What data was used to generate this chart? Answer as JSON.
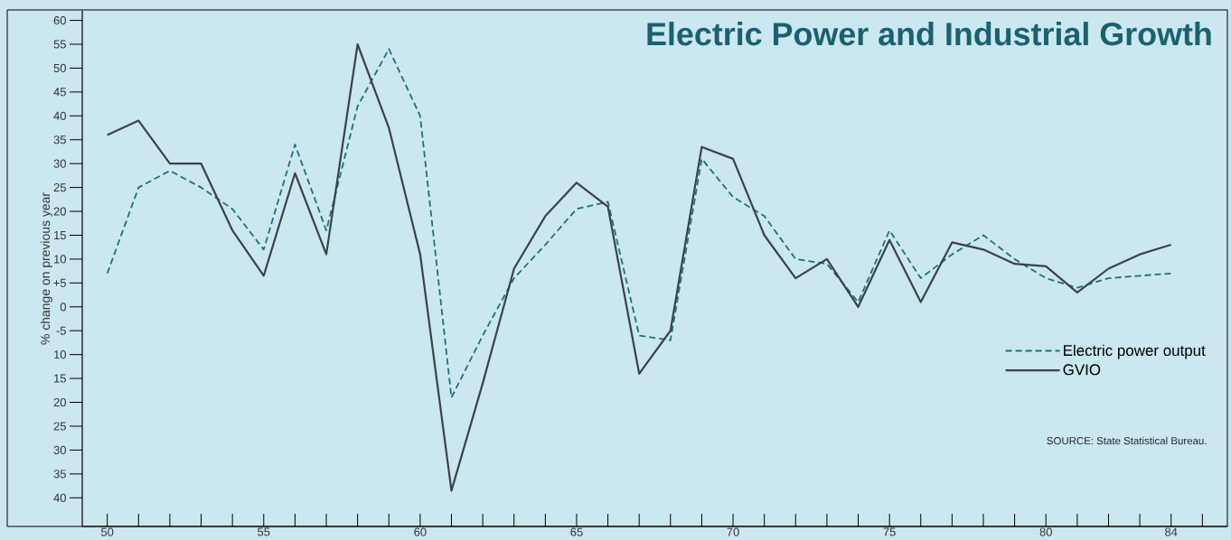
{
  "chart_data": {
    "type": "line",
    "title": "Electric Power and Industrial Growth",
    "ylabel": "% change on previous year",
    "annotations": [
      "SOURCE: State Statistical Bureau."
    ],
    "x": [
      50,
      51,
      52,
      53,
      54,
      55,
      56,
      57,
      58,
      59,
      60,
      61,
      62,
      63,
      64,
      65,
      66,
      67,
      68,
      69,
      70,
      71,
      72,
      73,
      74,
      75,
      76,
      77,
      78,
      79,
      80,
      81,
      82,
      83,
      84
    ],
    "series": [
      {
        "name": "Electric power output",
        "color": "#1f6f7a",
        "line_style": "dashed",
        "values": [
          7,
          25,
          28.5,
          25,
          20.5,
          12,
          34,
          16,
          42,
          54,
          40,
          -19,
          -6,
          6,
          13,
          20.5,
          22,
          -6,
          -7,
          31,
          23,
          19,
          10,
          9,
          1,
          16,
          6,
          11,
          15,
          10,
          6,
          4,
          6,
          6.5,
          7
        ]
      },
      {
        "name": "GVIO",
        "color": "#3a4348",
        "line_style": "solid",
        "values": [
          36,
          39,
          30,
          30,
          16,
          6.5,
          28,
          11,
          55,
          37.5,
          11,
          -38.5,
          -16,
          8,
          19,
          26,
          21,
          -14,
          -5,
          33.5,
          31,
          15,
          6,
          10,
          0,
          14,
          1,
          13.5,
          12,
          9,
          8.5,
          3,
          8,
          11,
          13
        ]
      }
    ],
    "xlim": [
      49.2,
      85.8
    ],
    "ylim": [
      -46,
      62
    ],
    "xticks": [
      50,
      {
        "value": 51,
        "label": null
      },
      {
        "value": 52,
        "label": null
      },
      {
        "value": 53,
        "label": null
      },
      {
        "value": 54,
        "label": null
      },
      55,
      {
        "value": 56,
        "label": null
      },
      {
        "value": 57,
        "label": null
      },
      {
        "value": 58,
        "label": null
      },
      {
        "value": 59,
        "label": null
      },
      60,
      {
        "value": 61,
        "label": null
      },
      {
        "value": 62,
        "label": null
      },
      {
        "value": 63,
        "label": null
      },
      {
        "value": 64,
        "label": null
      },
      65,
      {
        "value": 66,
        "label": null
      },
      {
        "value": 67,
        "label": null
      },
      {
        "value": 68,
        "label": null
      },
      {
        "value": 69,
        "label": null
      },
      70,
      {
        "value": 71,
        "label": null
      },
      {
        "value": 72,
        "label": null
      },
      {
        "value": 73,
        "label": null
      },
      {
        "value": 74,
        "label": null
      },
      75,
      {
        "value": 76,
        "label": null
      },
      {
        "value": 77,
        "label": null
      },
      {
        "value": 78,
        "label": null
      },
      {
        "value": 79,
        "label": null
      },
      80,
      {
        "value": 81,
        "label": null
      },
      {
        "value": 82,
        "label": null
      },
      {
        "value": 83,
        "label": null
      },
      84,
      {
        "value": 85,
        "label": null
      }
    ],
    "yticks": [
      60,
      55,
      50,
      45,
      40,
      35,
      30,
      25,
      20,
      15,
      10,
      {
        "value": 5,
        "label": "+5"
      },
      0,
      -5,
      {
        "value": -10,
        "label": "10"
      },
      {
        "value": -15,
        "label": "15"
      },
      {
        "value": -20,
        "label": "20"
      },
      {
        "value": -25,
        "label": "25"
      },
      {
        "value": -30,
        "label": "30"
      },
      {
        "value": -35,
        "label": "35"
      },
      {
        "value": -40,
        "label": "40"
      }
    ],
    "legend": "bottom right"
  }
}
